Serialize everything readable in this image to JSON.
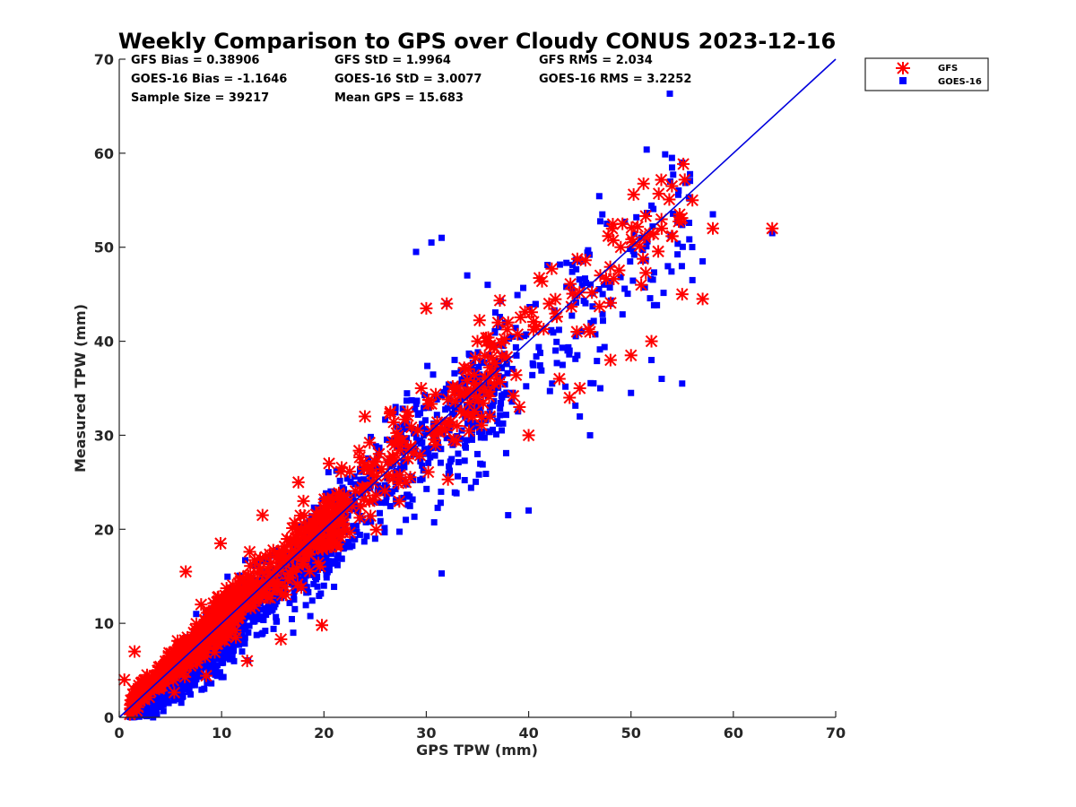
{
  "chart_data": {
    "type": "scatter",
    "title": "Weekly Comparison to GPS over Cloudy CONUS 2023-12-16",
    "xlabel": "GPS TPW (mm)",
    "ylabel": "Measured TPW (mm)",
    "xlim": [
      0,
      70
    ],
    "ylim": [
      0,
      70
    ],
    "x_ticks": [
      "0",
      "10",
      "20",
      "30",
      "40",
      "50",
      "60",
      "70"
    ],
    "y_ticks": [
      "0",
      "10",
      "20",
      "30",
      "40",
      "50",
      "60",
      "70"
    ],
    "grid": false,
    "legend_position": "outside top-right",
    "reference_line": {
      "x": [
        0,
        70
      ],
      "y": [
        0,
        70
      ],
      "color": "#0000dd"
    },
    "statistics": [
      [
        "GFS Bias = 0.38906",
        "GFS StD = 1.9964",
        "GFS RMS = 2.034"
      ],
      [
        "GOES-16 Bias = -1.1646",
        "GOES-16 StD = 3.0077",
        "GOES-16 RMS = 3.2252"
      ],
      [
        "Sample Size = 39217",
        "Mean GPS = 15.683",
        ""
      ]
    ],
    "series": [
      {
        "name": "GFS",
        "marker": "asterisk",
        "color": "#ff0000",
        "bias": 0.38906,
        "std": 1.9964,
        "rms": 2.034,
        "points": [
          [
            0.5,
            4
          ],
          [
            1.5,
            7
          ],
          [
            2.5,
            3
          ],
          [
            6.5,
            15.5
          ],
          [
            9.9,
            18.5
          ],
          [
            14,
            21.5
          ],
          [
            15.8,
            8.3
          ],
          [
            17.5,
            25
          ],
          [
            18,
            23
          ],
          [
            19.8,
            9.8
          ],
          [
            20.5,
            27
          ],
          [
            24,
            32
          ],
          [
            26.5,
            32.5
          ],
          [
            29.5,
            35
          ],
          [
            30,
            43.5
          ],
          [
            32,
            44
          ],
          [
            35,
            40
          ],
          [
            38,
            42
          ],
          [
            40,
            30
          ],
          [
            43,
            36
          ],
          [
            44,
            34
          ],
          [
            45,
            35
          ],
          [
            46,
            41
          ],
          [
            48,
            38
          ],
          [
            50,
            38.5
          ],
          [
            51,
            46
          ],
          [
            52,
            40
          ],
          [
            53,
            52
          ],
          [
            54,
            56.5
          ],
          [
            55,
            45
          ],
          [
            56,
            55
          ],
          [
            57,
            44.5
          ],
          [
            58,
            52
          ],
          [
            63.8,
            52
          ],
          [
            12.5,
            6
          ],
          [
            8,
            12
          ],
          [
            22,
            20
          ],
          [
            28,
            25
          ],
          [
            33,
            31
          ],
          [
            36,
            36
          ],
          [
            42,
            44
          ],
          [
            47,
            47
          ],
          [
            49,
            50
          ]
        ]
      },
      {
        "name": "GOES-16",
        "marker": "square",
        "color": "#0000ff",
        "bias": -1.1646,
        "std": 3.0077,
        "rms": 3.2252,
        "points": [
          [
            29,
            49.5
          ],
          [
            30.5,
            50.5
          ],
          [
            31.5,
            51
          ],
          [
            32,
            44
          ],
          [
            34,
            47
          ],
          [
            36,
            46
          ],
          [
            31.5,
            15.3
          ],
          [
            40,
            22
          ],
          [
            38,
            21.5
          ],
          [
            45,
            32
          ],
          [
            46,
            30
          ],
          [
            47,
            35
          ],
          [
            50,
            34.5
          ],
          [
            52,
            38
          ],
          [
            53,
            36
          ],
          [
            55,
            35.5
          ],
          [
            54,
            59.5
          ],
          [
            55,
            59
          ],
          [
            57,
            48.5
          ],
          [
            56,
            46.5
          ],
          [
            58,
            53.5
          ],
          [
            63.8,
            51.5
          ],
          [
            2,
            2.5
          ],
          [
            4,
            3
          ],
          [
            7,
            4.5
          ],
          [
            12,
            7
          ],
          [
            17,
            9
          ],
          [
            20,
            14
          ],
          [
            25,
            19
          ],
          [
            28,
            21
          ],
          [
            35,
            28
          ],
          [
            27,
            33
          ],
          [
            44,
            39
          ],
          [
            48,
            44
          ],
          [
            51,
            51
          ]
        ]
      }
    ]
  }
}
